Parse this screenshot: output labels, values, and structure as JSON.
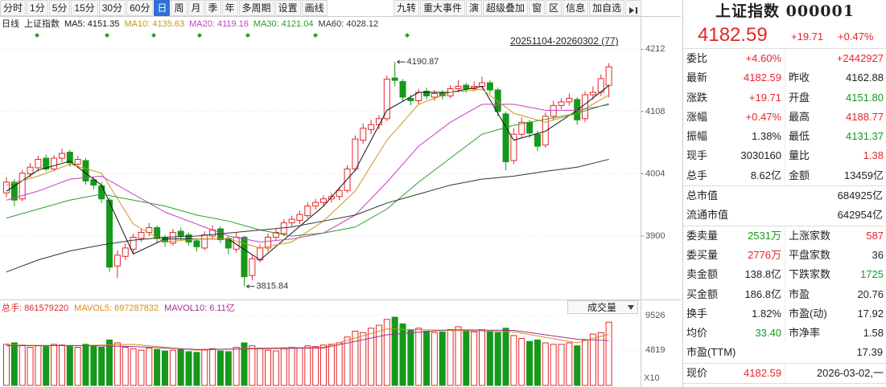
{
  "toolbar": {
    "periods": [
      "分时",
      "1分",
      "5分",
      "15分",
      "30分",
      "60分",
      "日",
      "周",
      "月",
      "季",
      "年",
      "多周期",
      "设置",
      "画线"
    ],
    "selected": 6,
    "tools": [
      "九转",
      "重大事件",
      "演",
      "超级叠加",
      "窗",
      "区",
      "信息",
      "加自选"
    ]
  },
  "chart_data": {
    "type": "candlestick",
    "period_label": "日线",
    "symbol_label": "上证指数",
    "range_label": "20251104-20260302 (77)",
    "up_color": "#e4262b",
    "down_color": "#16991a",
    "grid": true,
    "ylim": [
      3798,
      4250
    ],
    "yticks": [
      3900,
      4004,
      4108,
      4212
    ],
    "high_label": "4190.87",
    "low_label": "3815.84",
    "candles": [
      [
        3972,
        3998,
        3965,
        3990
      ],
      [
        3990,
        3995,
        3950,
        3960
      ],
      [
        3962,
        4010,
        3958,
        4005
      ],
      [
        4004,
        4022,
        3998,
        4015
      ],
      [
        4014,
        4034,
        4008,
        4028
      ],
      [
        4030,
        4036,
        4008,
        4012
      ],
      [
        4012,
        4035,
        4008,
        4030
      ],
      [
        4030,
        4046,
        4024,
        4038
      ],
      [
        4040,
        4044,
        4016,
        4022
      ],
      [
        4020,
        4034,
        4014,
        4028
      ],
      [
        4026,
        4030,
        3986,
        3992
      ],
      [
        3994,
        3998,
        3978,
        3985
      ],
      [
        3984,
        3990,
        3955,
        3962
      ],
      [
        3960,
        3964,
        3840,
        3848
      ],
      [
        3850,
        3876,
        3830,
        3868
      ],
      [
        3866,
        3888,
        3860,
        3880
      ],
      [
        3878,
        3904,
        3872,
        3898
      ],
      [
        3896,
        3912,
        3890,
        3906
      ],
      [
        3906,
        3922,
        3900,
        3914
      ],
      [
        3914,
        3918,
        3888,
        3896
      ],
      [
        3898,
        3902,
        3882,
        3890
      ],
      [
        3888,
        3912,
        3884,
        3906
      ],
      [
        3908,
        3914,
        3894,
        3900
      ],
      [
        3902,
        3906,
        3884,
        3890
      ],
      [
        3892,
        3896,
        3874,
        3882
      ],
      [
        3880,
        3908,
        3876,
        3902
      ],
      [
        3900,
        3918,
        3896,
        3910
      ],
      [
        3912,
        3916,
        3888,
        3894
      ],
      [
        3896,
        3900,
        3870,
        3880
      ],
      [
        3878,
        3906,
        3872,
        3898
      ],
      [
        3898,
        3900,
        3815.84,
        3832
      ],
      [
        3834,
        3868,
        3826,
        3862
      ],
      [
        3860,
        3886,
        3856,
        3880
      ],
      [
        3880,
        3904,
        3874,
        3898
      ],
      [
        3898,
        3912,
        3892,
        3906
      ],
      [
        3904,
        3928,
        3900,
        3922
      ],
      [
        3922,
        3934,
        3916,
        3928
      ],
      [
        3926,
        3942,
        3920,
        3936
      ],
      [
        3934,
        3956,
        3930,
        3950
      ],
      [
        3950,
        3962,
        3944,
        3956
      ],
      [
        3956,
        3968,
        3950,
        3962
      ],
      [
        3962,
        3972,
        3956,
        3966
      ],
      [
        3966,
        3982,
        3960,
        3976
      ],
      [
        3976,
        4018,
        3972,
        4012
      ],
      [
        4012,
        4068,
        4008,
        4062
      ],
      [
        4060,
        4088,
        4054,
        4080
      ],
      [
        4078,
        4094,
        4070,
        4086
      ],
      [
        4086,
        4102,
        4078,
        4096
      ],
      [
        4096,
        4168,
        4092,
        4162
      ],
      [
        4164,
        4190.87,
        4150,
        4160
      ],
      [
        4158,
        4162,
        4126,
        4132
      ],
      [
        4130,
        4136,
        4118,
        4126
      ],
      [
        4126,
        4146,
        4120,
        4140
      ],
      [
        4142,
        4148,
        4128,
        4134
      ],
      [
        4132,
        4144,
        4126,
        4138
      ],
      [
        4140,
        4144,
        4128,
        4134
      ],
      [
        4134,
        4152,
        4130,
        4146
      ],
      [
        4146,
        4160,
        4140,
        4150
      ],
      [
        4152,
        4156,
        4140,
        4146
      ],
      [
        4146,
        4158,
        4142,
        4150
      ],
      [
        4150,
        4166,
        4146,
        4156
      ],
      [
        4156,
        4160,
        4138,
        4144
      ],
      [
        4144,
        4148,
        4100,
        4108
      ],
      [
        4104,
        4108,
        4010,
        4024
      ],
      [
        4026,
        4080,
        4020,
        4070
      ],
      [
        4070,
        4098,
        4064,
        4090
      ],
      [
        4090,
        4094,
        4064,
        4072
      ],
      [
        4070,
        4076,
        4042,
        4050
      ],
      [
        4052,
        4106,
        4048,
        4100
      ],
      [
        4100,
        4126,
        4094,
        4118
      ],
      [
        4118,
        4130,
        4112,
        4124
      ],
      [
        4124,
        4138,
        4118,
        4130
      ],
      [
        4128,
        4132,
        4086,
        4094
      ],
      [
        4096,
        4142,
        4090,
        4136
      ],
      [
        4136,
        4150,
        4128,
        4140
      ],
      [
        4140,
        4170,
        4134,
        4162.88
      ],
      [
        4151.8,
        4188.77,
        4131.37,
        4182.59
      ]
    ],
    "ma_series": [
      {
        "name": "MA5: 4151.35",
        "color": "#111111",
        "x": [
          0,
          4,
          8,
          12,
          16,
          20,
          24,
          28,
          32,
          36,
          40,
          44,
          48,
          52,
          56,
          60,
          64,
          68,
          72,
          76
        ],
        "values": [
          3975,
          4010,
          4025,
          3985,
          3870,
          3895,
          3895,
          3895,
          3860,
          3905,
          3950,
          4010,
          4110,
          4140,
          4140,
          4150,
          4060,
          4075,
          4110,
          4151.35
        ]
      },
      {
        "name": "MA10: 4135.63",
        "color": "#c9961a",
        "x": [
          0,
          4,
          8,
          12,
          16,
          20,
          24,
          28,
          32,
          36,
          40,
          44,
          48,
          52,
          56,
          60,
          64,
          68,
          72,
          76
        ],
        "values": [
          3985,
          4000,
          4020,
          4005,
          3920,
          3890,
          3895,
          3895,
          3880,
          3890,
          3925,
          3975,
          4060,
          4120,
          4140,
          4145,
          4105,
          4090,
          4105,
          4135.63
        ]
      },
      {
        "name": "MA20: 4119.16",
        "color": "#c93fc0",
        "x": [
          0,
          4,
          8,
          12,
          16,
          20,
          24,
          28,
          32,
          36,
          40,
          44,
          48,
          52,
          56,
          60,
          64,
          68,
          72,
          76
        ],
        "values": [
          3960,
          3975,
          3995,
          4000,
          3970,
          3940,
          3920,
          3900,
          3890,
          3895,
          3905,
          3935,
          3990,
          4050,
          4090,
          4120,
          4120,
          4110,
          4110,
          4119.16
        ]
      },
      {
        "name": "MA30: 4121.04",
        "color": "#2a9e2a",
        "x": [
          0,
          4,
          8,
          12,
          16,
          20,
          24,
          28,
          32,
          36,
          40,
          44,
          48,
          52,
          56,
          60,
          64,
          68,
          72,
          76
        ],
        "values": [
          3930,
          3945,
          3960,
          3970,
          3960,
          3950,
          3935,
          3925,
          3910,
          3900,
          3905,
          3915,
          3945,
          3990,
          4030,
          4070,
          4085,
          4095,
          4105,
          4121.04
        ]
      },
      {
        "name": "MA60: 4028.12",
        "color": "#333333",
        "x": [
          0,
          4,
          8,
          12,
          16,
          20,
          24,
          28,
          32,
          36,
          40,
          44,
          48,
          52,
          56,
          60,
          64,
          68,
          72,
          76
        ],
        "values": [
          3840,
          3860,
          3875,
          3885,
          3893,
          3898,
          3900,
          3905,
          3910,
          3915,
          3925,
          3935,
          3955,
          3970,
          3985,
          3995,
          4000,
          4008,
          4015,
          4028.12
        ]
      }
    ],
    "volume": {
      "name": "总手: 861579220",
      "name_color": "#d9262b",
      "selector": "成交量",
      "unit_label": "X10",
      "ylim": [
        0,
        10400
      ],
      "yticks": [
        4819,
        9526
      ],
      "values": [
        5600,
        5800,
        5500,
        5200,
        5400,
        5300,
        5600,
        5500,
        5400,
        5200,
        5600,
        5300,
        5200,
        6200,
        5800,
        5200,
        5000,
        4800,
        5100,
        4900,
        4700,
        4800,
        4900,
        4600,
        4500,
        4800,
        5000,
        4700,
        4600,
        5200,
        5800,
        5400,
        5000,
        4800,
        4700,
        5000,
        5200,
        5100,
        5400,
        5300,
        5500,
        5600,
        5800,
        6600,
        7400,
        7200,
        7800,
        8200,
        9000,
        9300,
        8400,
        7600,
        7800,
        7400,
        7200,
        7300,
        7600,
        8000,
        7500,
        7300,
        7600,
        7400,
        7200,
        7800,
        6800,
        6400,
        6000,
        6200,
        5800,
        5600,
        5600,
        5800,
        5400,
        6200,
        7000,
        7200,
        8616
      ],
      "ma_series": [
        {
          "name": "MAVOL5: 697287832",
          "color": "#d98a1a",
          "x": [
            0,
            8,
            16,
            24,
            32,
            40,
            48,
            56,
            64,
            72,
            76
          ],
          "values": [
            5500,
            5400,
            5600,
            4800,
            5100,
            5200,
            7700,
            7500,
            7300,
            5800,
            6973
          ]
        },
        {
          "name": "MAVOL10: 6.11亿",
          "color": "#a03090",
          "x": [
            0,
            8,
            16,
            24,
            32,
            40,
            48,
            56,
            64,
            72,
            76
          ],
          "values": [
            5400,
            5450,
            5300,
            4900,
            5000,
            5100,
            6900,
            7600,
            7500,
            6300,
            6110
          ]
        }
      ]
    }
  },
  "quote_panel": {
    "title": "上证指数 000001",
    "price": "4182.59",
    "change": "+19.71",
    "change_pct": "+0.47%",
    "color": "#e4262b",
    "sections": [
      [
        [
          {
            "label": "委比",
            "value": "+4.60%",
            "color": "#e4262b"
          },
          {
            "value": "+2442927",
            "color": "#e4262b"
          }
        ],
        [
          {
            "label": "最新",
            "value": "4182.59",
            "color": "#e4262b"
          },
          {
            "label": "昨收",
            "value": "4162.88",
            "color": "#222222"
          }
        ],
        [
          {
            "label": "涨跌",
            "value": "+19.71",
            "color": "#e4262b"
          },
          {
            "label": "开盘",
            "value": "4151.80",
            "color": "#16991a"
          }
        ],
        [
          {
            "label": "涨幅",
            "value": "+0.47%",
            "color": "#e4262b"
          },
          {
            "label": "最高",
            "value": "4188.77",
            "color": "#e4262b"
          }
        ],
        [
          {
            "label": "振幅",
            "value": "1.38%",
            "color": "#222222"
          },
          {
            "label": "最低",
            "value": "4131.37",
            "color": "#16991a"
          }
        ],
        [
          {
            "label": "现手",
            "value": "3030160",
            "color": "#222222"
          },
          {
            "label": "量比",
            "value": "1.38",
            "color": "#e4262b"
          }
        ],
        [
          {
            "label": "总手",
            "value": "8.62亿",
            "color": "#222222"
          },
          {
            "label": "金额",
            "value": "13459亿",
            "color": "#222222"
          }
        ]
      ],
      [
        [
          {
            "label": "总市值",
            "value": "684925亿",
            "color": "#222222"
          }
        ],
        [
          {
            "label": "流通市值",
            "value": "642954亿",
            "color": "#222222"
          }
        ]
      ],
      [
        [
          {
            "label": "委卖量",
            "value": "2531万",
            "color": "#16991a"
          },
          {
            "label": "上涨家数",
            "value": "587",
            "color": "#e4262b"
          }
        ],
        [
          {
            "label": "委买量",
            "value": "2776万",
            "color": "#e4262b"
          },
          {
            "label": "平盘家数",
            "value": "36",
            "color": "#222222"
          }
        ],
        [
          {
            "label": "卖金额",
            "value": "138.8亿",
            "color": "#222222"
          },
          {
            "label": "下跌家数",
            "value": "1725",
            "color": "#16991a"
          }
        ],
        [
          {
            "label": "买金额",
            "value": "186.8亿",
            "color": "#222222"
          },
          {
            "label": "市盈",
            "value": "20.76",
            "color": "#222222"
          }
        ],
        [
          {
            "label": "换手",
            "value": "1.82%",
            "color": "#222222"
          },
          {
            "label": "市盈(动)",
            "value": "17.92",
            "color": "#222222"
          }
        ],
        [
          {
            "label": "均价",
            "value": "33.40",
            "color": "#16991a"
          },
          {
            "label": "市净率",
            "value": "1.58",
            "color": "#222222"
          }
        ],
        [
          {
            "label": "市盈(TTM)",
            "value": "17.39",
            "color": "#222222"
          }
        ]
      ],
      [
        [
          {
            "label": "现价",
            "value": "4182.59",
            "color": "#e4262b"
          },
          {
            "value": "2026-03-02,一",
            "color": "#222222"
          }
        ]
      ]
    ]
  }
}
